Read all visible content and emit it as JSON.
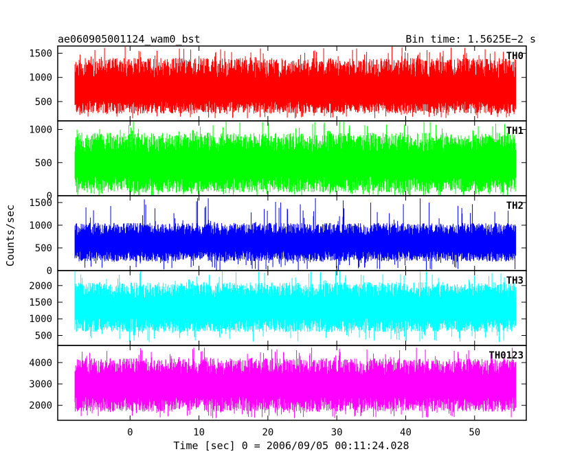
{
  "title_left": "ae060905001124_wam0_bst",
  "title_right": "Bin time: 1.5625E−2 s",
  "ylabel": "Counts/sec",
  "xlabel": "Time [sec] 0 = 2006/09/05 00:11:24.028",
  "chart_data": [
    {
      "type": "line",
      "name": "TH0",
      "color": "#ff0000",
      "x_range": [
        -8,
        56
      ],
      "ylim": [
        100,
        1650
      ],
      "yticks": [
        500,
        1000,
        1500
      ],
      "y_band": [
        250,
        1400
      ],
      "y_spikes": [
        150,
        1650
      ],
      "mean": 700
    },
    {
      "type": "line",
      "name": "TH1",
      "color": "#00ff00",
      "x_range": [
        -8,
        56
      ],
      "ylim": [
        0,
        1130
      ],
      "yticks": [
        0,
        500,
        1000
      ],
      "y_band": [
        50,
        950
      ],
      "y_spikes": [
        0,
        1130
      ],
      "mean": 450
    },
    {
      "type": "line",
      "name": "TH2",
      "color": "#0000ff",
      "x_range": [
        -8,
        56
      ],
      "ylim": [
        0,
        1650
      ],
      "yticks": [
        0,
        500,
        1000,
        1500
      ],
      "y_band": [
        200,
        1050
      ],
      "y_spikes": [
        0,
        1600
      ],
      "mean": 600
    },
    {
      "type": "line",
      "name": "TH3",
      "color": "#00ffff",
      "x_range": [
        -8,
        56
      ],
      "ylim": [
        200,
        2450
      ],
      "yticks": [
        500,
        1000,
        1500,
        2000
      ],
      "y_band": [
        600,
        2100
      ],
      "y_spikes": [
        300,
        2450
      ],
      "mean": 1300
    },
    {
      "type": "line",
      "name": "TH0123",
      "color": "#ff00ff",
      "x_range": [
        -8,
        56
      ],
      "ylim": [
        1300,
        4800
      ],
      "yticks": [
        2000,
        3000,
        4000
      ],
      "y_band": [
        1700,
        4200
      ],
      "y_spikes": [
        1400,
        4700
      ],
      "mean": 2900
    }
  ],
  "xaxis": {
    "xlim": [
      -10.5,
      57.5
    ],
    "ticks": [
      0,
      10,
      20,
      30,
      40,
      50
    ]
  }
}
